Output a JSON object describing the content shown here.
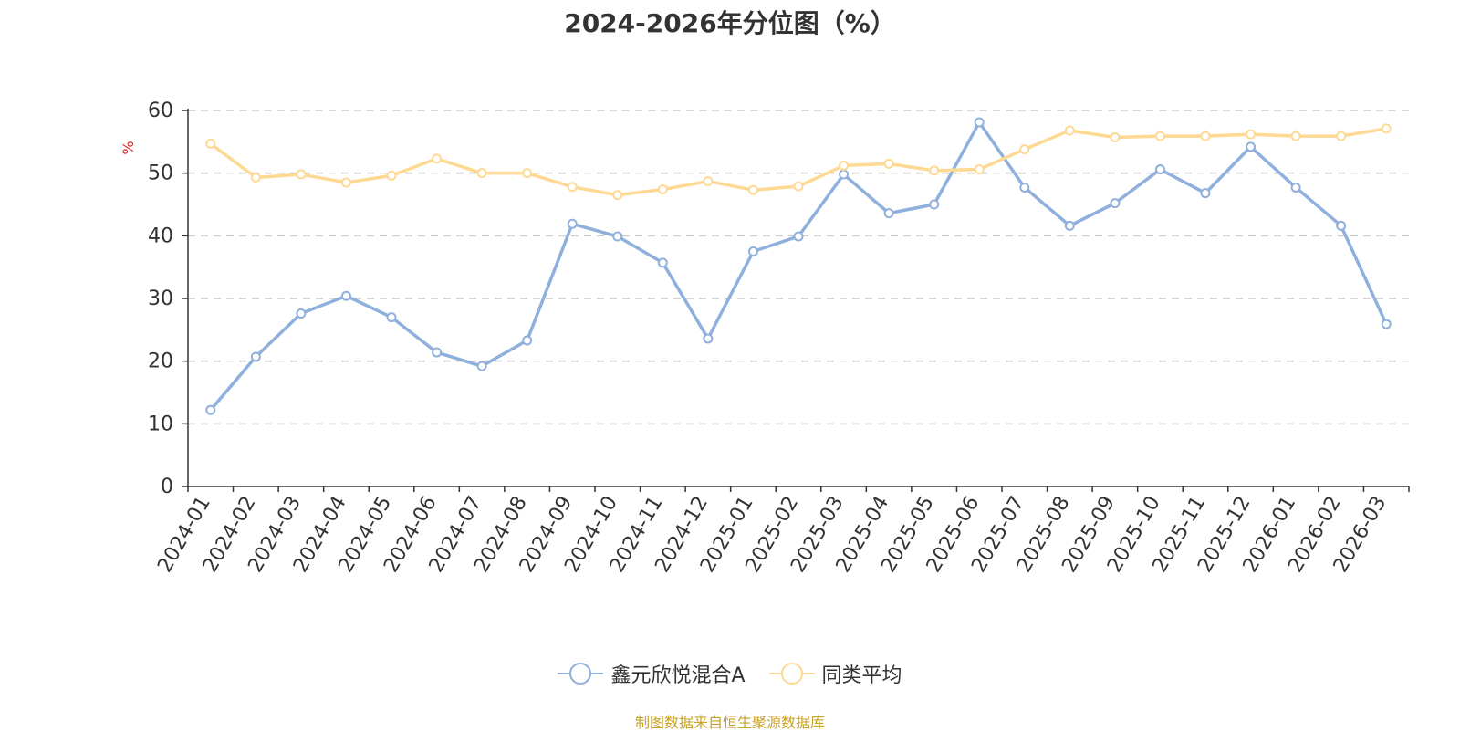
{
  "chart_data": {
    "type": "line",
    "title": "2024-2026年分位图（%）",
    "ylabel": "%",
    "xlabel": "",
    "ylim": [
      0,
      60
    ],
    "yticks": [
      0,
      10,
      20,
      30,
      40,
      50,
      60
    ],
    "grid": true,
    "legend_position": "bottom",
    "categories": [
      "2024-01",
      "2024-02",
      "2024-03",
      "2024-04",
      "2024-05",
      "2024-06",
      "2024-07",
      "2024-08",
      "2024-09",
      "2024-10",
      "2024-11",
      "2024-12",
      "2025-01",
      "2025-02",
      "2025-03",
      "2025-04",
      "2025-05",
      "2025-06",
      "2025-07",
      "2025-08",
      "2025-09",
      "2025-10",
      "2025-11",
      "2025-12",
      "2026-01",
      "2026-02",
      "2026-03"
    ],
    "series": [
      {
        "name": "鑫元欣悦混合A",
        "color": "#8fb0dc",
        "values": [
          12.2,
          20.7,
          27.6,
          30.4,
          27.0,
          21.4,
          19.2,
          23.3,
          41.9,
          39.9,
          35.7,
          23.6,
          37.5,
          39.9,
          49.8,
          43.6,
          45.0,
          58.1,
          47.7,
          41.6,
          45.2,
          50.6,
          46.8,
          54.2,
          47.7,
          41.6,
          25.9
        ]
      },
      {
        "name": "同类平均",
        "color": "#fdd993",
        "values": [
          54.7,
          49.3,
          49.8,
          48.5,
          49.6,
          52.3,
          50.0,
          50.0,
          47.8,
          46.5,
          47.4,
          48.7,
          47.3,
          47.9,
          51.2,
          51.5,
          50.4,
          50.6,
          53.8,
          56.8,
          55.7,
          55.9,
          55.9,
          56.2,
          55.9,
          55.9,
          57.1
        ]
      }
    ]
  },
  "source_note": "制图数据来自恒生聚源数据库"
}
